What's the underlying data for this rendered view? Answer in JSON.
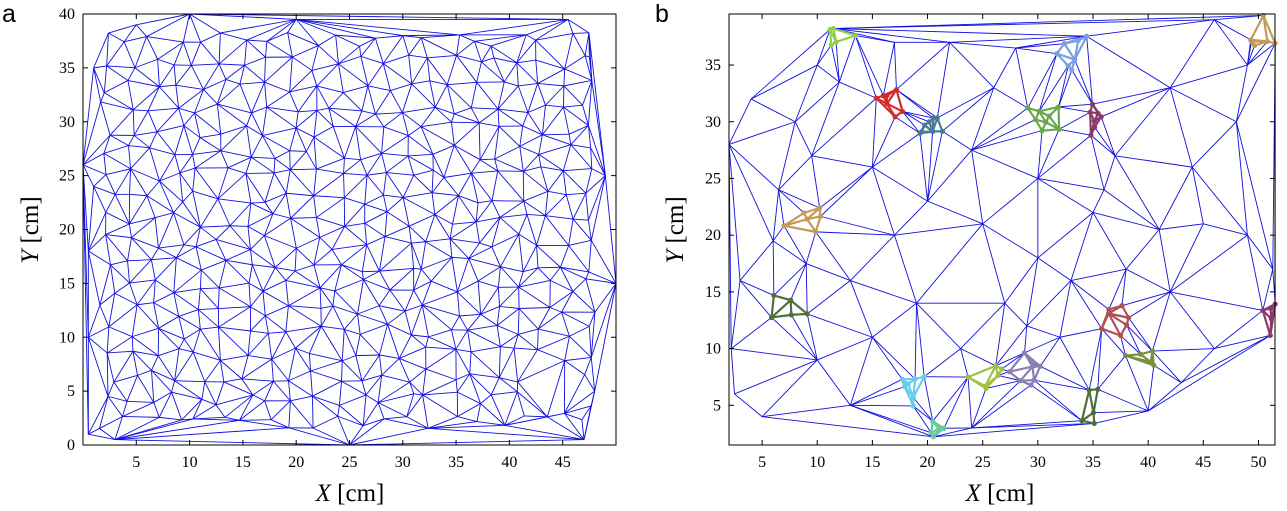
{
  "panels": [
    {
      "label": "a",
      "xlabel": {
        "var": "X",
        "unit": "[cm]"
      },
      "ylabel": {
        "var": "Y",
        "unit": "[cm]"
      },
      "xlim": [
        0,
        50
      ],
      "ylim": [
        0,
        40
      ],
      "xticks": [
        "5",
        "10",
        "15",
        "20",
        "25",
        "30",
        "35",
        "40",
        "45"
      ],
      "yticks": [
        "0",
        "5",
        "10",
        "15",
        "20",
        "25",
        "30",
        "35",
        "40"
      ]
    },
    {
      "label": "b",
      "xlabel": {
        "var": "X",
        "unit": "[cm]"
      },
      "ylabel": {
        "var": "Y",
        "unit": "[cm]"
      },
      "xlim": [
        2,
        51.5
      ],
      "ylim": [
        1.5,
        39.5
      ],
      "xticks": [
        "5",
        "10",
        "15",
        "20",
        "25",
        "30",
        "35",
        "40",
        "45",
        "50"
      ],
      "yticks": [
        "5",
        "10",
        "15",
        "20",
        "25",
        "30",
        "35"
      ]
    }
  ],
  "colors": {
    "edge": "#1010dd"
  },
  "cluster_colors": [
    "#d42a2a",
    "#4a7a9a",
    "#6aa84f",
    "#8fd14f",
    "#c49a5a",
    "#7aa0e0",
    "#8a3a6a",
    "#4f6f3f",
    "#66ccee",
    "#8a7fb0",
    "#a0c040",
    "#7a8f3a",
    "#b05050",
    "#66cc99"
  ],
  "chart_data": [
    {
      "type": "network",
      "xlabel": "X [cm]",
      "ylabel": "Y [cm]",
      "xlim": [
        0,
        50
      ],
      "ylim": [
        0,
        40
      ],
      "structure": "Delaunay triangulation of roughly uniformly scattered points"
    },
    {
      "type": "network",
      "xlabel": "X [cm]",
      "ylabel": "Y [cm]",
      "xlim": [
        2,
        51.5
      ],
      "ylim": [
        1.5,
        39.5
      ],
      "structure": "Delaunay triangulation of points grouped into coloured clusters along a ring",
      "clusters": [
        {
          "x": 17,
          "y": 32,
          "color": "#d42a2a"
        },
        {
          "x": 33.5,
          "y": 36,
          "color": "#7aa0e0"
        },
        {
          "x": 21,
          "y": 29.5,
          "color": "#4a7a9a"
        },
        {
          "x": 30.5,
          "y": 30.5,
          "color": "#6aa84f"
        },
        {
          "x": 35,
          "y": 30.5,
          "color": "#8a3a6a"
        },
        {
          "x": 8.5,
          "y": 21.5,
          "color": "#c49a5a"
        },
        {
          "x": 12,
          "y": 38,
          "color": "#8fd14f"
        },
        {
          "x": 50.5,
          "y": 38,
          "color": "#c49a5a"
        },
        {
          "x": 7.5,
          "y": 13.5,
          "color": "#4f6f3f"
        },
        {
          "x": 36.5,
          "y": 12.5,
          "color": "#b05050"
        },
        {
          "x": 39,
          "y": 8.5,
          "color": "#7a8f3a"
        },
        {
          "x": 18.5,
          "y": 6.5,
          "color": "#66ccee"
        },
        {
          "x": 25,
          "y": 7.5,
          "color": "#a0c040"
        },
        {
          "x": 20.5,
          "y": 3,
          "color": "#66cc99"
        },
        {
          "x": 50.5,
          "y": 12.5,
          "color": "#8a3a6a"
        },
        {
          "x": 29,
          "y": 8,
          "color": "#8a7fb0"
        },
        {
          "x": 35,
          "y": 5,
          "color": "#4f6f3f"
        }
      ]
    }
  ]
}
